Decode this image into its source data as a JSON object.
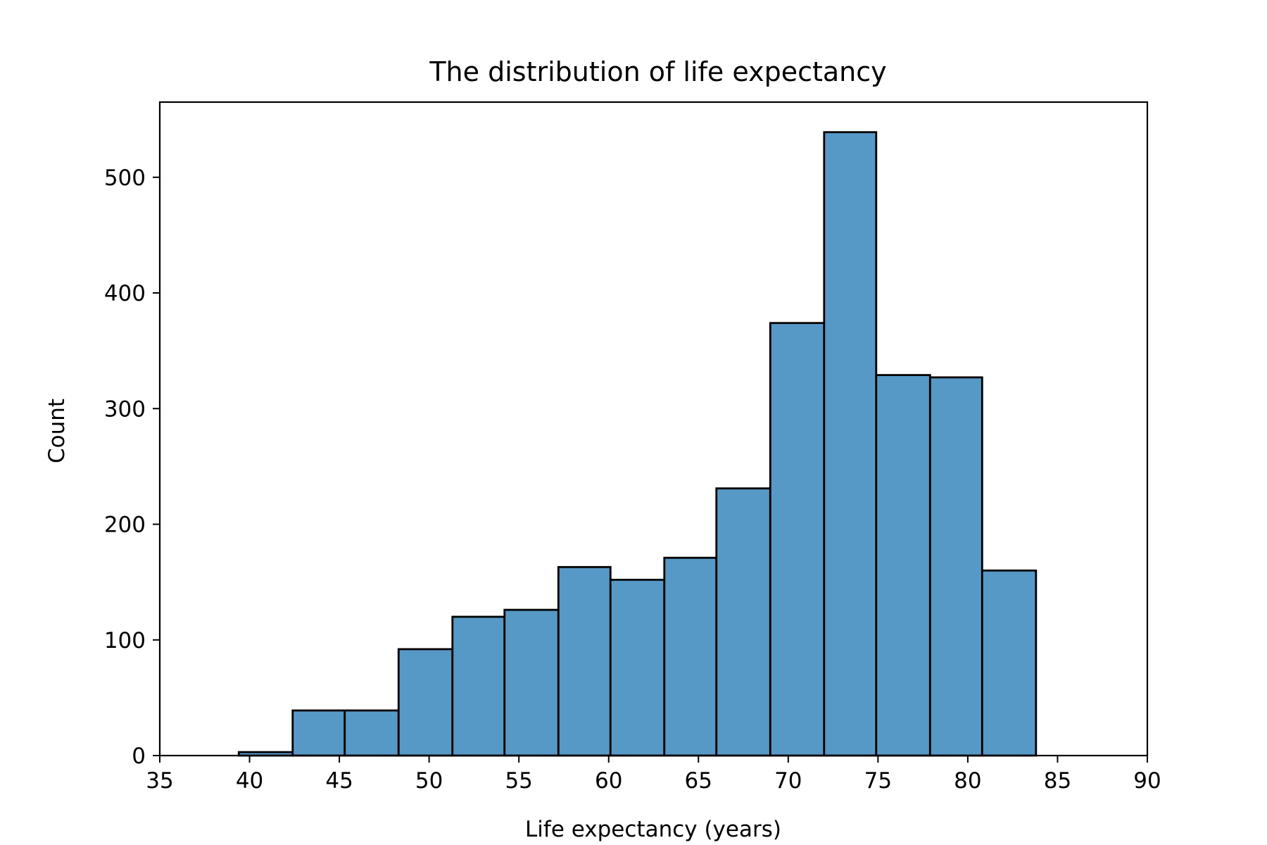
{
  "chart_data": {
    "type": "bar",
    "title": "The distribution of life expectancy",
    "xlabel": "Life expectancy (years)",
    "ylabel": "Count",
    "xlim": [
      35,
      90
    ],
    "ylim": [
      0,
      565
    ],
    "xticks": [
      35,
      40,
      45,
      50,
      55,
      60,
      65,
      70,
      75,
      80,
      85,
      90
    ],
    "yticks": [
      0,
      100,
      200,
      300,
      400,
      500
    ],
    "grid": false,
    "bar_color": "#5799c6",
    "edge_color": "#000000",
    "bins": [
      {
        "start": 39.4,
        "end": 42.4,
        "count": 3
      },
      {
        "start": 42.4,
        "end": 45.3,
        "count": 39
      },
      {
        "start": 45.3,
        "end": 48.3,
        "count": 39
      },
      {
        "start": 48.3,
        "end": 51.3,
        "count": 92
      },
      {
        "start": 51.3,
        "end": 54.2,
        "count": 120
      },
      {
        "start": 54.2,
        "end": 57.2,
        "count": 126
      },
      {
        "start": 57.2,
        "end": 60.1,
        "count": 163
      },
      {
        "start": 60.1,
        "end": 63.1,
        "count": 152
      },
      {
        "start": 63.1,
        "end": 66.0,
        "count": 171
      },
      {
        "start": 66.0,
        "end": 69.0,
        "count": 231
      },
      {
        "start": 69.0,
        "end": 72.0,
        "count": 374
      },
      {
        "start": 72.0,
        "end": 74.9,
        "count": 539
      },
      {
        "start": 74.9,
        "end": 77.9,
        "count": 329
      },
      {
        "start": 77.9,
        "end": 80.8,
        "count": 327
      },
      {
        "start": 80.8,
        "end": 83.8,
        "count": 160
      }
    ]
  }
}
